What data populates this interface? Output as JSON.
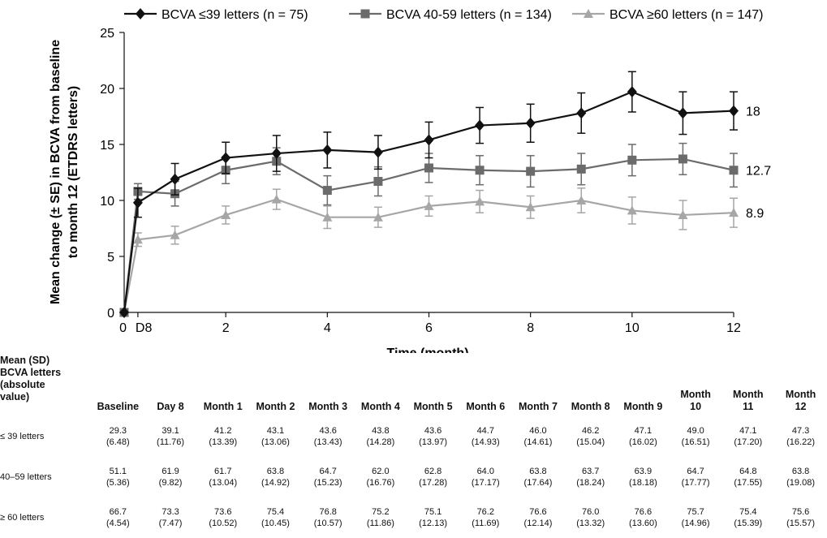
{
  "chart_data": {
    "type": "line",
    "ylabel_line1": "Mean change (± SE) in BCVA  from baseline",
    "ylabel_line2": "to month 12 (ETDRS letters)",
    "xlabel": "Time (month)",
    "ylim": [
      0,
      25
    ],
    "xlim": [
      0,
      12
    ],
    "yticks": [
      "0",
      "5",
      "10",
      "15",
      "20",
      "25"
    ],
    "xticks": [
      {
        "x": 0,
        "label": "0"
      },
      {
        "x": 0.27,
        "label": "D8"
      },
      {
        "x": 2,
        "label": "2"
      },
      {
        "x": 4,
        "label": "4"
      },
      {
        "x": 6,
        "label": "6"
      },
      {
        "x": 8,
        "label": "8"
      },
      {
        "x": 10,
        "label": "10"
      },
      {
        "x": 12,
        "label": "12"
      }
    ],
    "x": [
      0,
      0.27,
      1,
      2,
      3,
      4,
      5,
      6,
      7,
      8,
      9,
      10,
      11,
      12
    ],
    "series": [
      {
        "name": "BCVA  ≤39 letters (n = 75)",
        "marker": "diamond",
        "color": "#111111",
        "values": [
          0,
          9.8,
          11.9,
          13.8,
          14.2,
          14.5,
          14.3,
          15.4,
          16.7,
          16.9,
          17.8,
          19.7,
          17.8,
          18.0
        ],
        "se": [
          0,
          1.3,
          1.4,
          1.4,
          1.6,
          1.6,
          1.5,
          1.6,
          1.6,
          1.7,
          1.8,
          1.8,
          1.9,
          1.7
        ],
        "end_label": "18"
      },
      {
        "name": "BCVA 40-59 letters (n = 134)",
        "marker": "square",
        "color": "#6b6b6b",
        "values": [
          0,
          10.8,
          10.6,
          12.7,
          13.5,
          10.9,
          11.7,
          12.9,
          12.7,
          12.6,
          12.8,
          13.6,
          13.7,
          12.7
        ],
        "se": [
          0,
          0.7,
          1.1,
          1.2,
          1.2,
          1.3,
          1.3,
          1.3,
          1.3,
          1.4,
          1.4,
          1.4,
          1.4,
          1.5
        ],
        "end_label": "12.7"
      },
      {
        "name": "BCVA  ≥60 letters (n = 147)",
        "marker": "triangle",
        "color": "#a6a6a6",
        "values": [
          0,
          6.5,
          6.9,
          8.7,
          10.1,
          8.5,
          8.5,
          9.5,
          9.9,
          9.4,
          10.0,
          9.1,
          8.7,
          8.9
        ],
        "se": [
          0,
          0.6,
          0.8,
          0.8,
          0.9,
          1.0,
          0.9,
          0.9,
          1.0,
          1.0,
          1.1,
          1.2,
          1.3,
          1.3
        ],
        "end_label": "8.9"
      }
    ]
  },
  "table": {
    "row_header": [
      "Mean (SD)",
      "BCVA letters",
      "(absolute",
      "value)"
    ],
    "columns": [
      [
        "Baseline"
      ],
      [
        "Day 8"
      ],
      [
        "Month 1"
      ],
      [
        "Month 2"
      ],
      [
        "Month 3"
      ],
      [
        "Month 4"
      ],
      [
        "Month 5"
      ],
      [
        "Month 6"
      ],
      [
        "Month 7"
      ],
      [
        "Month 8"
      ],
      [
        "Month 9"
      ],
      [
        "Month",
        "10"
      ],
      [
        "Month",
        "11"
      ],
      [
        "Month",
        "12"
      ]
    ],
    "rows": [
      {
        "label": "≤ 39 letters",
        "means": [
          "29.3",
          "39.1",
          "41.2",
          "43.1",
          "43.6",
          "43.8",
          "43.6",
          "44.7",
          "46.0",
          "46.2",
          "47.1",
          "49.0",
          "47.1",
          "47.3"
        ],
        "sds": [
          "(6.48)",
          "(11.76)",
          "(13.39)",
          "(13.06)",
          "(13.43)",
          "(14.28)",
          "(13.97)",
          "(14.93)",
          "(14.61)",
          "(15.04)",
          "(16.02)",
          "(16.51)",
          "(17.20)",
          "(16.22)"
        ]
      },
      {
        "label": "40–59 letters",
        "means": [
          "51.1",
          "61.9",
          "61.7",
          "63.8",
          "64.7",
          "62.0",
          "62.8",
          "64.0",
          "63.8",
          "63.7",
          "63.9",
          "64.7",
          "64.8",
          "63.8"
        ],
        "sds": [
          "(5.36)",
          "(9.82)",
          "(13.04)",
          "(14.92)",
          "(15.23)",
          "(16.76)",
          "(17.28)",
          "(17.17)",
          "(17.64)",
          "(18.24)",
          "(18.18)",
          "(17.77)",
          "(17.55)",
          "(19.08)"
        ]
      },
      {
        "label": "≥ 60 letters",
        "means": [
          "66.7",
          "73.3",
          "73.6",
          "75.4",
          "76.8",
          "75.2",
          "75.1",
          "76.2",
          "76.6",
          "76.0",
          "76.6",
          "75.7",
          "75.4",
          "75.6"
        ],
        "sds": [
          "(4.54)",
          "(7.47)",
          "(10.52)",
          "(10.45)",
          "(10.57)",
          "(11.86)",
          "(12.13)",
          "(11.69)",
          "(12.14)",
          "(13.32)",
          "(13.60)",
          "(14.96)",
          "(15.39)",
          "(15.57)"
        ]
      }
    ]
  }
}
